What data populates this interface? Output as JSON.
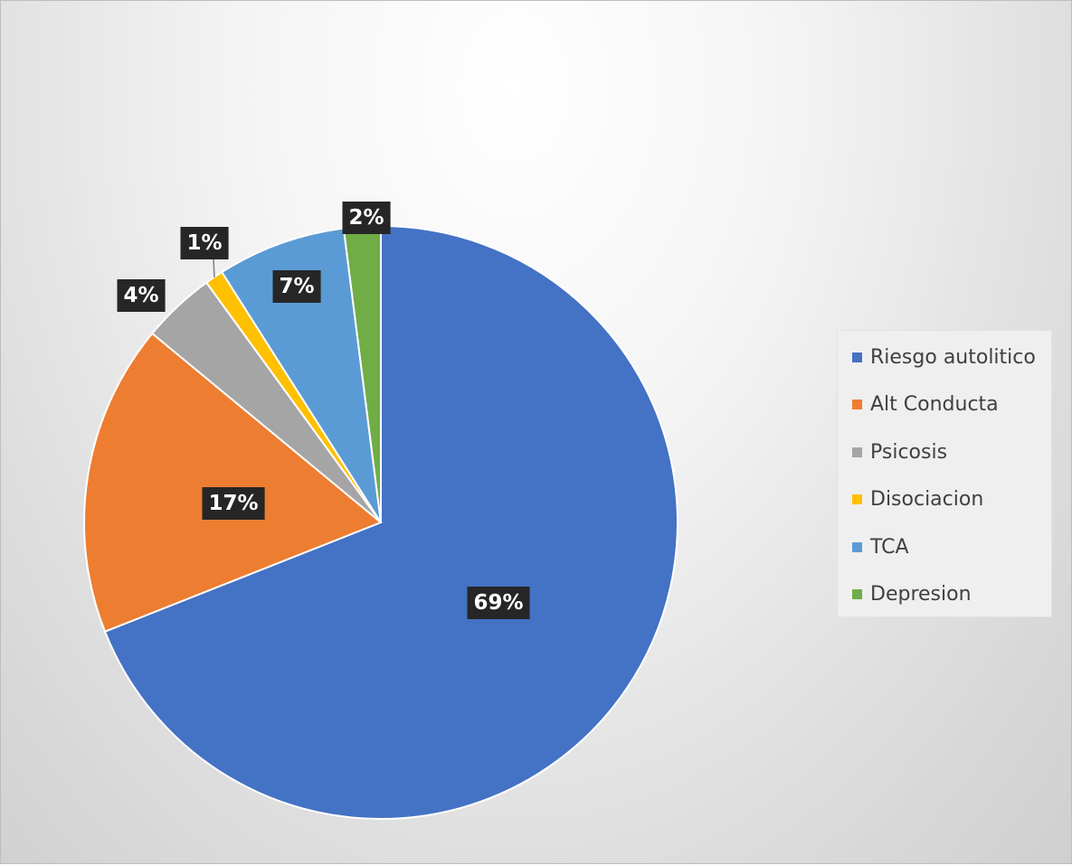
{
  "chart_data": {
    "type": "pie",
    "title": "",
    "legend_position": "right",
    "slices": [
      {
        "name": "Riesgo autolitico",
        "value": 69,
        "label": "69%",
        "color": "#4472C4"
      },
      {
        "name": "Alt Conducta",
        "value": 17,
        "label": "17%",
        "color": "#ED7D31"
      },
      {
        "name": "Psicosis",
        "value": 4,
        "label": "4%",
        "color": "#A5A5A5"
      },
      {
        "name": "Disociacion",
        "value": 1,
        "label": "1%",
        "color": "#FFC000"
      },
      {
        "name": "TCA",
        "value": 7,
        "label": "7%",
        "color": "#5B9BD5"
      },
      {
        "name": "Depresion",
        "value": 2,
        "label": "2%",
        "color": "#70AD47"
      }
    ]
  }
}
